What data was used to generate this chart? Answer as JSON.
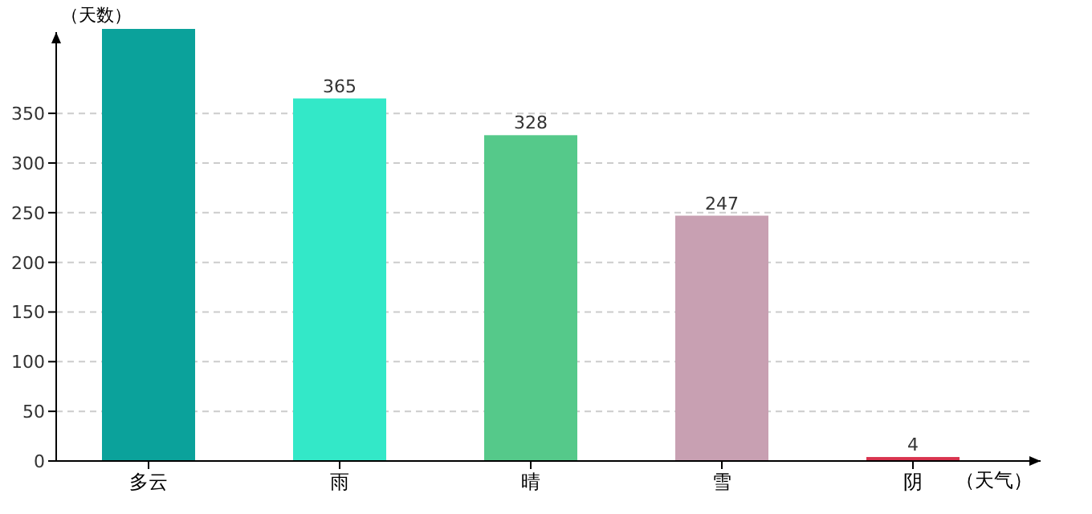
{
  "chart_data": {
    "type": "bar",
    "ylabel": "（天数）",
    "xlabel": "（天气）",
    "categories": [
      "多云",
      "雨",
      "晴",
      "雪",
      "阴"
    ],
    "values": [
      435,
      365,
      328,
      247,
      4
    ],
    "value_labels": [
      null,
      "365",
      "328",
      "247",
      "4"
    ],
    "colors": [
      "#0ba29b",
      "#33e8c8",
      "#55c98a",
      "#c8a0b2",
      "#d9344f"
    ],
    "ylim": [
      0,
      435
    ],
    "yticks": [
      0,
      50,
      100,
      150,
      200,
      250,
      300,
      350
    ],
    "grid": "y"
  }
}
